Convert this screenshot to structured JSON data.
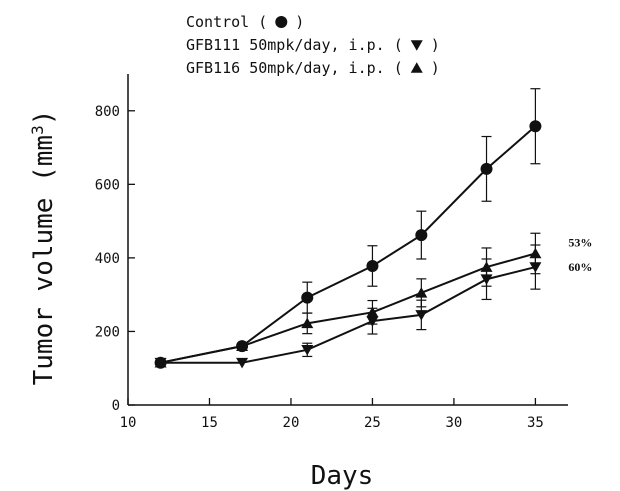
{
  "chart_data": {
    "type": "line",
    "xlabel": "Days",
    "ylabel": "Tumor volume (mm",
    "ylabel_sup": "3",
    "ylabel_close": ")",
    "xlim": [
      10,
      37
    ],
    "ylim": [
      0,
      900
    ],
    "x_ticks": [
      10,
      15,
      20,
      25,
      30,
      35
    ],
    "y_ticks": [
      0,
      200,
      400,
      600,
      800
    ],
    "legend_position": "top",
    "series": [
      {
        "name": "Control",
        "legend_label": "Control (",
        "legend_close": ")",
        "marker": "circle",
        "x": [
          12,
          17,
          21,
          25,
          28,
          32,
          35
        ],
        "y": [
          115,
          160,
          292,
          378,
          462,
          642,
          758
        ],
        "err": [
          0,
          0,
          42,
          55,
          65,
          88,
          102
        ]
      },
      {
        "name": "GFB111 50mpk/day, i.p.",
        "legend_label": "GFB111 50mpk/day, i.p. (",
        "legend_close": ")",
        "marker": "triangle-down",
        "x": [
          12,
          17,
          21,
          25,
          28,
          32,
          35
        ],
        "y": [
          115,
          115,
          150,
          228,
          245,
          342,
          375
        ],
        "err": [
          0,
          0,
          18,
          35,
          40,
          55,
          60
        ]
      },
      {
        "name": "GFB116 50mpk/day, i.p.",
        "legend_label": "GFB116 50mpk/day, i.p. (",
        "legend_close": ")",
        "marker": "triangle-up",
        "x": [
          12,
          17,
          21,
          25,
          28,
          32,
          35
        ],
        "y": [
          115,
          160,
          222,
          252,
          305,
          375,
          412
        ],
        "err": [
          0,
          0,
          28,
          32,
          38,
          52,
          55
        ]
      }
    ],
    "annotations": [
      {
        "text": "53%",
        "x": 35,
        "y": 442
      },
      {
        "text": "60%",
        "x": 35,
        "y": 375
      }
    ]
  }
}
